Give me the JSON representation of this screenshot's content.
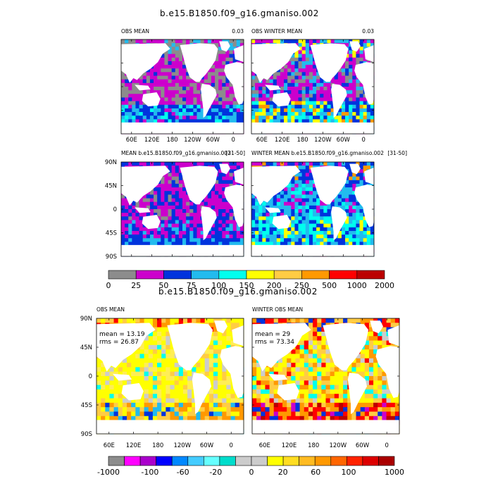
{
  "chart_data": {
    "type": "heatmap",
    "figure_title": "b.e15.B1850.f09_g16.gmaniso.002",
    "lower_title": "b.e15.B1850.f09_g16.gmaniso.002",
    "longitude_ticks": [
      "60E",
      "120E",
      "180",
      "120W",
      "60W",
      "0"
    ],
    "latitude_ticks": [
      "90N",
      "45N",
      "0",
      "45S",
      "90S"
    ],
    "panels": [
      {
        "id": "obs-mean",
        "title_left": "OBS MEAN",
        "title_right": "0.03",
        "style": "obs"
      },
      {
        "id": "obs-winter-mean",
        "title_left": "OBS WINTER MEAN",
        "title_right": "0.03",
        "style": "obsw"
      },
      {
        "id": "model-mean",
        "title_left": "MEAN  b.e15.B1850.f09_g16.gmaniso.002",
        "title_right": "[31-50]",
        "style": "model"
      },
      {
        "id": "model-winter-mean",
        "title_left": "WINTER MEAN  b.e15.B1850.f09_g16.gmaniso.002",
        "title_right": "[31-50]",
        "style": "modelw"
      },
      {
        "id": "diff-obs-mean",
        "title_left": "OBS MEAN",
        "title_right": "",
        "mean_label": "mean = 13.19",
        "rms_label": "rms = 26.87",
        "style": "diff"
      },
      {
        "id": "diff-winter-obs-mean",
        "title_left": "WINTER OBS MEAN",
        "title_right": "",
        "mean_label": "mean = 29",
        "rms_label": "rms = 73.34",
        "style": "diffw"
      }
    ],
    "colorbar_top": {
      "levels": [
        "0",
        "25",
        "50",
        "75",
        "100",
        "150",
        "200",
        "250",
        "500",
        "1000",
        "2000"
      ],
      "colors": [
        "#8c8c8c",
        "#cc00cc",
        "#0033dd",
        "#22bbee",
        "#00ffee",
        "#ffff00",
        "#ffcc44",
        "#ff9900",
        "#ff0000",
        "#bb0000"
      ]
    },
    "colorbar_bottom": {
      "labels": [
        "-1000",
        "-100",
        "-60",
        "-20",
        "0",
        "20",
        "60",
        "100",
        "1000"
      ],
      "colors": [
        "#8c8c8c",
        "#ff00ff",
        "#aa00cc",
        "#0000ff",
        "#0088ff",
        "#44ccff",
        "#66ffff",
        "#00ddcc",
        "#cccccc",
        "#cccccc",
        "#ffff00",
        "#ffdd22",
        "#ffbb22",
        "#ff9900",
        "#ff6600",
        "#ff2200",
        "#dd0000",
        "#aa0000"
      ]
    }
  }
}
